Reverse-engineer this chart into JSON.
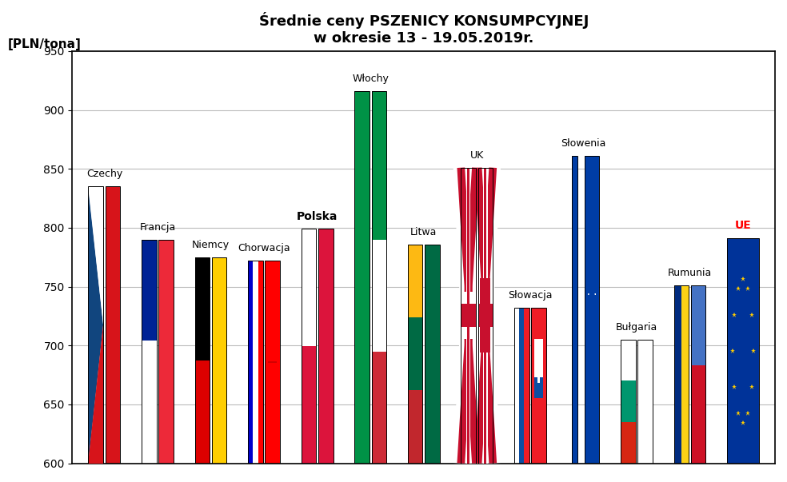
{
  "title_line1": "Średnie ceny PSZENICY KONSUMPCYJNEJ",
  "title_line2": "w okresie 13 - 19.05.2019r.",
  "ylabel": "[PLN/tona]",
  "ylim": [
    600,
    950
  ],
  "yticks": [
    600,
    650,
    700,
    750,
    800,
    850,
    900,
    950
  ],
  "countries": [
    "Czechy",
    "Francja",
    "Niemcy",
    "Chorwacja",
    "Polska",
    "Włochy",
    "Litwa",
    "UK",
    "Słowacja",
    "Słowenia",
    "Bułgaria",
    "Rumunia",
    "UE"
  ],
  "values": [
    835,
    790,
    775,
    772,
    799,
    916,
    786,
    851,
    732,
    861,
    705,
    751,
    791
  ],
  "label_bold": [
    4,
    12
  ],
  "label_colors": [
    "black",
    "black",
    "black",
    "black",
    "black",
    "black",
    "black",
    "black",
    "black",
    "black",
    "black",
    "black",
    "red"
  ],
  "background_color": "#ffffff",
  "grid_color": "#bbbbbb",
  "sub_bar_width": 0.28,
  "sub_bar_gap": 0.04
}
